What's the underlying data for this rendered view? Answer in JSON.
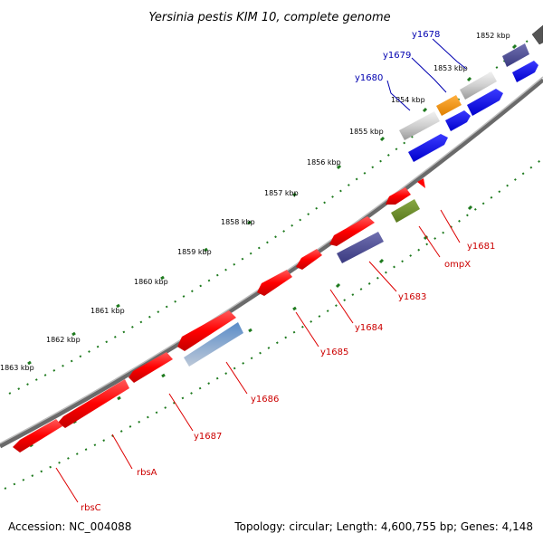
{
  "title": "Yersinia pestis KIM 10, complete genome",
  "footer": {
    "accession": "Accession: NC_004088",
    "summary": "Topology: circular; Length: 4,600,755 bp; Genes: 4,148"
  },
  "colors": {
    "background": "#ffffff",
    "backbone": "#808080",
    "ticks": "#1e7a1e",
    "plus_strand_label": "#0000b0",
    "minus_strand_label": "#cc0000"
  },
  "kbp_labels": [
    "1852 kbp",
    "1853 kbp",
    "1854 kbp",
    "1855 kbp",
    "1856 kbp",
    "1857 kbp",
    "1858 kbp",
    "1859 kbp",
    "1860 kbp",
    "1861 kbp",
    "1862 kbp",
    "1863 kbp"
  ],
  "genes": [
    {
      "name": "y1678",
      "strand": "plus"
    },
    {
      "name": "y1679",
      "strand": "plus"
    },
    {
      "name": "y1680",
      "strand": "plus"
    },
    {
      "name": "y1681",
      "strand": "minus"
    },
    {
      "name": "ompX",
      "strand": "minus"
    },
    {
      "name": "y1683",
      "strand": "minus"
    },
    {
      "name": "y1684",
      "strand": "minus"
    },
    {
      "name": "y1685",
      "strand": "minus"
    },
    {
      "name": "y1686",
      "strand": "minus"
    },
    {
      "name": "y1687",
      "strand": "minus"
    },
    {
      "name": "rbsA",
      "strand": "minus"
    },
    {
      "name": "rbsC",
      "strand": "minus"
    }
  ]
}
